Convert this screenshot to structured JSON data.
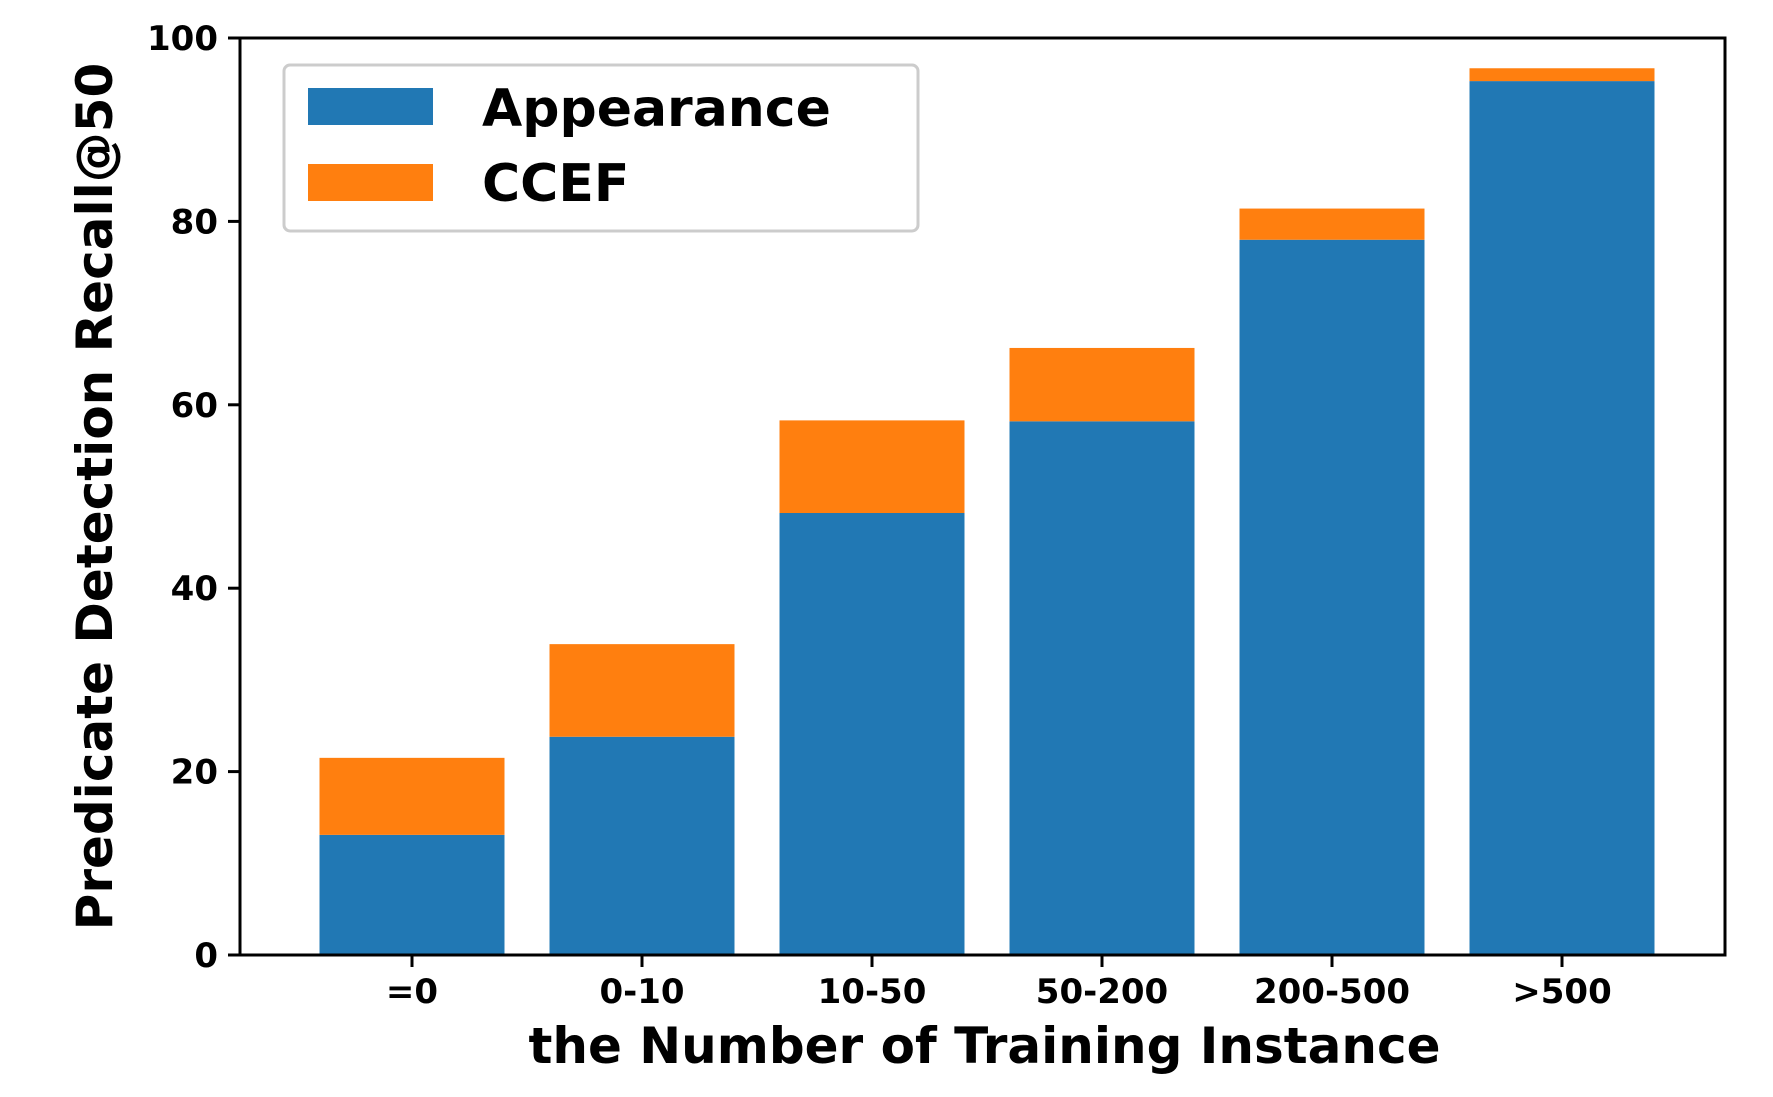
{
  "chart_data": {
    "type": "bar",
    "stacked": true,
    "title": "",
    "xlabel": "the Number of Training Instance",
    "ylabel": "Predicate Detection Recall@50",
    "categories": [
      "=0",
      "0-10",
      "10-50",
      "50-200",
      "200-500",
      ">500"
    ],
    "series": [
      {
        "name": "Appearance",
        "color": "#2178b4",
        "values": [
          13.1,
          23.8,
          48.2,
          58.2,
          78.0,
          95.3
        ]
      },
      {
        "name": "CCEF",
        "color": "#ff7f0f",
        "values": [
          8.4,
          10.1,
          10.1,
          8.0,
          3.4,
          1.4
        ]
      }
    ],
    "ylim": [
      0,
      100
    ],
    "yticks": [
      0,
      20,
      40,
      60,
      80,
      100
    ],
    "grid": false,
    "legend": {
      "position": "top-left"
    }
  }
}
